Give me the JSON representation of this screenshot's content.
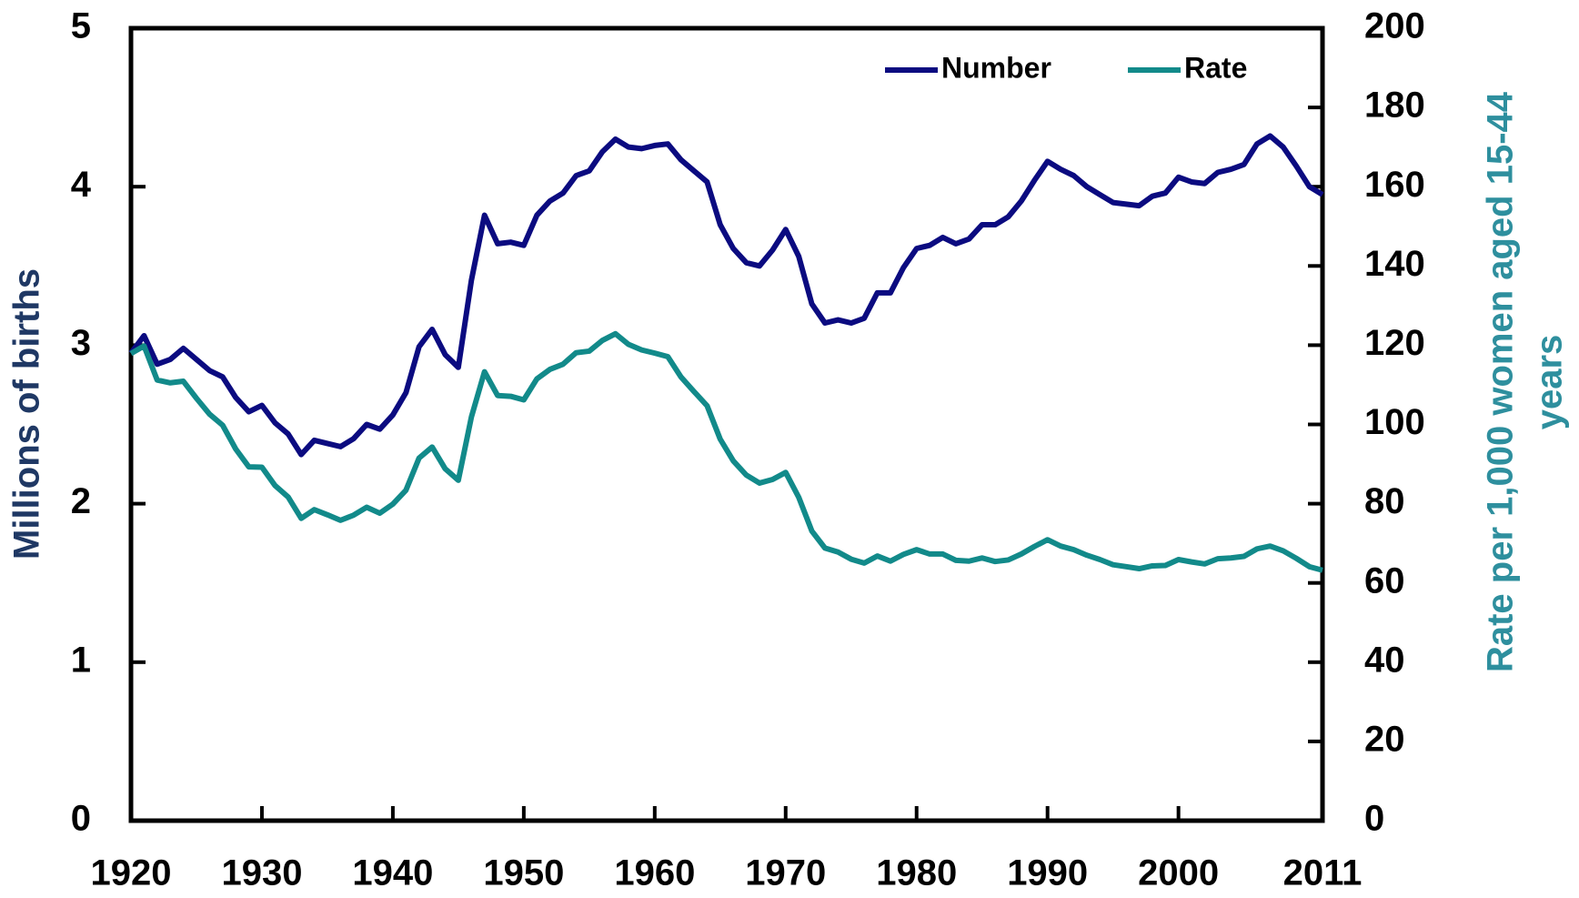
{
  "chart_data": {
    "type": "line",
    "x": [
      1920,
      1921,
      1922,
      1923,
      1924,
      1925,
      1926,
      1927,
      1928,
      1929,
      1930,
      1931,
      1932,
      1933,
      1934,
      1935,
      1936,
      1937,
      1938,
      1939,
      1940,
      1941,
      1942,
      1943,
      1944,
      1945,
      1946,
      1947,
      1948,
      1949,
      1950,
      1951,
      1952,
      1953,
      1954,
      1955,
      1956,
      1957,
      1958,
      1959,
      1960,
      1961,
      1962,
      1963,
      1964,
      1965,
      1966,
      1967,
      1968,
      1969,
      1970,
      1971,
      1972,
      1973,
      1974,
      1975,
      1976,
      1977,
      1978,
      1979,
      1980,
      1981,
      1982,
      1983,
      1984,
      1985,
      1986,
      1987,
      1988,
      1989,
      1990,
      1991,
      1992,
      1993,
      1994,
      1995,
      1996,
      1997,
      1998,
      1999,
      2000,
      2001,
      2002,
      2003,
      2004,
      2005,
      2006,
      2007,
      2008,
      2009,
      2010,
      2011
    ],
    "series": [
      {
        "name": "Number",
        "color": "#0b0b80",
        "values": [
          2.95,
          3.06,
          2.88,
          2.91,
          2.98,
          2.91,
          2.84,
          2.8,
          2.67,
          2.58,
          2.62,
          2.51,
          2.44,
          2.31,
          2.4,
          2.38,
          2.36,
          2.41,
          2.5,
          2.47,
          2.56,
          2.7,
          2.99,
          3.1,
          2.94,
          2.86,
          3.41,
          3.82,
          3.64,
          3.65,
          3.63,
          3.82,
          3.91,
          3.96,
          4.07,
          4.1,
          4.22,
          4.3,
          4.25,
          4.24,
          4.26,
          4.27,
          4.17,
          4.1,
          4.03,
          3.76,
          3.61,
          3.52,
          3.5,
          3.6,
          3.73,
          3.56,
          3.26,
          3.14,
          3.16,
          3.14,
          3.17,
          3.33,
          3.33,
          3.49,
          3.61,
          3.63,
          3.68,
          3.64,
          3.67,
          3.76,
          3.76,
          3.81,
          3.91,
          4.04,
          4.16,
          4.11,
          4.07,
          4.0,
          3.95,
          3.9,
          3.89,
          3.88,
          3.94,
          3.96,
          4.06,
          4.03,
          4.02,
          4.09,
          4.11,
          4.14,
          4.27,
          4.32,
          4.25,
          4.13,
          4.0,
          3.95
        ]
      },
      {
        "name": "Rate",
        "color": "#128a8a",
        "axis": "y2",
        "values": [
          117.9,
          119.8,
          111.2,
          110.5,
          110.9,
          106.6,
          102.6,
          99.8,
          93.8,
          89.3,
          89.2,
          84.6,
          81.7,
          76.3,
          78.5,
          77.2,
          75.8,
          77.1,
          79.1,
          77.6,
          79.9,
          83.4,
          91.5,
          94.3,
          88.8,
          85.9,
          101.9,
          113.3,
          107.3,
          107.1,
          106.2,
          111.5,
          113.9,
          115.2,
          118.1,
          118.5,
          121.2,
          122.9,
          120.2,
          118.8,
          118.0,
          117.1,
          112.0,
          108.3,
          104.7,
          96.3,
          90.8,
          87.2,
          85.2,
          86.1,
          87.9,
          81.6,
          73.1,
          68.8,
          67.8,
          66.0,
          65.0,
          66.8,
          65.5,
          67.2,
          68.4,
          67.3,
          67.3,
          65.7,
          65.5,
          66.3,
          65.4,
          65.8,
          67.3,
          69.2,
          70.9,
          69.3,
          68.4,
          67.0,
          65.9,
          64.6,
          64.1,
          63.6,
          64.3,
          64.4,
          65.9,
          65.3,
          64.8,
          66.1,
          66.3,
          66.7,
          68.6,
          69.3,
          68.1,
          66.2,
          64.1,
          63.2
        ]
      }
    ],
    "ylabel": "Millions of births",
    "y2label": [
      "Rate per 1,000 women aged 15-44",
      "years"
    ],
    "xlim": [
      1920,
      2011
    ],
    "xticks": [
      1920,
      1930,
      1940,
      1950,
      1960,
      1970,
      1980,
      1990,
      2000,
      2011
    ],
    "ylim": [
      0,
      5
    ],
    "yticks": [
      0,
      1,
      2,
      3,
      4,
      5
    ],
    "y2lim": [
      0,
      200
    ],
    "y2ticks": [
      0,
      20,
      40,
      60,
      80,
      100,
      120,
      140,
      160,
      180,
      200
    ],
    "legend": "upper right"
  }
}
